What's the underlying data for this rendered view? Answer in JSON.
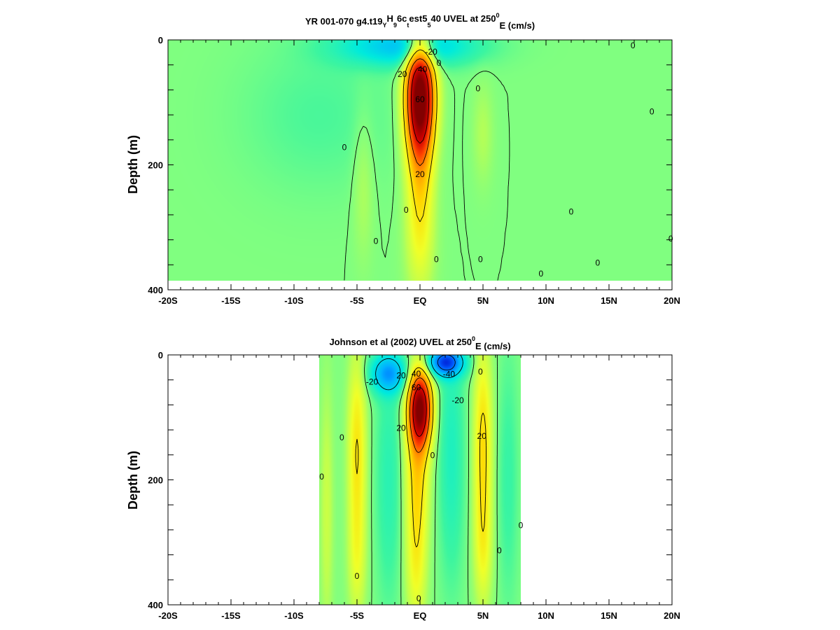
{
  "chart_data": [
    {
      "type": "heatmap",
      "title_parts": [
        "YR 001-070 g4.t19",
        "Y",
        "H",
        "9",
        "6c",
        "t",
        "est5",
        "5",
        "40 UVEL at 250",
        "0",
        "E (cm/s)"
      ],
      "ylabel": "Depth (m)",
      "x_ticklabels": [
        "-20S",
        "-15S",
        "-10S",
        "-5S",
        "EQ",
        "5N",
        "10N",
        "15N",
        "20N"
      ],
      "x_ticks": [
        -20,
        -15,
        -10,
        -5,
        0,
        5,
        10,
        15,
        20
      ],
      "xlim": [
        -20,
        20
      ],
      "y_ticklabels": [
        "0",
        "200",
        "400"
      ],
      "y_ticks": [
        0,
        200,
        400
      ],
      "ylim": [
        0,
        400
      ],
      "y_inverted": true,
      "data_extent": {
        "lat": [
          -20,
          20
        ],
        "depth": [
          0,
          385
        ]
      },
      "features": [
        {
          "kind": "max",
          "lat": 0.0,
          "depth": 90,
          "value": 80,
          "width": 1.1,
          "height": 90
        },
        {
          "kind": "max",
          "lat": 0.0,
          "depth": 200,
          "value": 22,
          "width": 1.0,
          "height": 140
        },
        {
          "kind": "max",
          "lat": 0.0,
          "depth": 330,
          "value": 6,
          "width": 1.2,
          "height": 100
        },
        {
          "kind": "min",
          "lat": -1.0,
          "depth": 10,
          "value": -26,
          "width": 5.0,
          "height": 30
        },
        {
          "kind": "max",
          "lat": -4.5,
          "depth": 230,
          "value": 5,
          "width": 0.8,
          "height": 120
        },
        {
          "kind": "max",
          "lat": 5.0,
          "depth": 150,
          "value": 5,
          "width": 0.8,
          "height": 80
        },
        {
          "kind": "min",
          "lat": -8.0,
          "depth": 120,
          "value": -4,
          "width": 6.0,
          "height": 120
        }
      ],
      "contour_levels": [
        0,
        20,
        40,
        60
      ],
      "contour_labels": [
        {
          "text": "0",
          "lat": 16.9,
          "depth": 9
        },
        {
          "text": "-20",
          "lat": 0.9,
          "depth": 19
        },
        {
          "text": "20",
          "lat": -1.4,
          "depth": 55
        },
        {
          "text": "40",
          "lat": 0.2,
          "depth": 47
        },
        {
          "text": "60",
          "lat": 0.0,
          "depth": 95
        },
        {
          "text": "20",
          "lat": 0.0,
          "depth": 215
        },
        {
          "text": "0",
          "lat": 1.5,
          "depth": 37
        },
        {
          "text": "0",
          "lat": -6.0,
          "depth": 172
        },
        {
          "text": "0",
          "lat": 4.6,
          "depth": 78
        },
        {
          "text": "0",
          "lat": 18.4,
          "depth": 115
        },
        {
          "text": "0",
          "lat": -1.1,
          "depth": 272
        },
        {
          "text": "0",
          "lat": -3.5,
          "depth": 322
        },
        {
          "text": "0",
          "lat": 1.3,
          "depth": 351
        },
        {
          "text": "0",
          "lat": 4.8,
          "depth": 351
        },
        {
          "text": "0",
          "lat": 12.0,
          "depth": 275
        },
        {
          "text": "0",
          "lat": 19.9,
          "depth": 318
        },
        {
          "text": "0",
          "lat": 14.1,
          "depth": 357
        },
        {
          "text": "0",
          "lat": 9.6,
          "depth": 374
        }
      ]
    },
    {
      "type": "heatmap",
      "title_parts": [
        "Johnson et al (2002) UVEL at 250",
        "0",
        "E (cm/s)"
      ],
      "ylabel": "Depth (m)",
      "x_ticklabels": [
        "-20S",
        "-15S",
        "-10S",
        "-5S",
        "EQ",
        "5N",
        "10N",
        "15N",
        "20N"
      ],
      "x_ticks": [
        -20,
        -15,
        -10,
        -5,
        0,
        5,
        10,
        15,
        20
      ],
      "xlim": [
        -20,
        20
      ],
      "y_ticklabels": [
        "0",
        "200",
        "400"
      ],
      "y_ticks": [
        0,
        200,
        400
      ],
      "ylim": [
        0,
        400
      ],
      "y_inverted": true,
      "data_extent": {
        "lat": [
          -8,
          8
        ],
        "depth": [
          0,
          400
        ]
      },
      "features": [
        {
          "kind": "max",
          "lat": 0.0,
          "depth": 85,
          "value": 75,
          "width": 0.9,
          "height": 60
        },
        {
          "kind": "max",
          "lat": -0.2,
          "depth": 180,
          "value": 22,
          "width": 0.9,
          "height": 110
        },
        {
          "kind": "max",
          "lat": -0.3,
          "depth": 330,
          "value": 15,
          "width": 0.8,
          "height": 110
        },
        {
          "kind": "max",
          "lat": -5.0,
          "depth": 150,
          "value": 20,
          "width": 0.7,
          "height": 150
        },
        {
          "kind": "max",
          "lat": -5.0,
          "depth": 330,
          "value": 10,
          "width": 0.7,
          "height": 100
        },
        {
          "kind": "max",
          "lat": 5.0,
          "depth": 140,
          "value": 22,
          "width": 0.7,
          "height": 150
        },
        {
          "kind": "max",
          "lat": 5.0,
          "depth": 310,
          "value": 12,
          "width": 0.7,
          "height": 100
        },
        {
          "kind": "max",
          "lat": -7.4,
          "depth": 250,
          "value": 8,
          "width": 0.5,
          "height": 200
        },
        {
          "kind": "min",
          "lat": -2.5,
          "depth": 30,
          "value": -32,
          "width": 1.4,
          "height": 30
        },
        {
          "kind": "min",
          "lat": 2.0,
          "depth": 12,
          "value": -48,
          "width": 1.4,
          "height": 22
        },
        {
          "kind": "min",
          "lat": 2.5,
          "depth": 160,
          "value": -10,
          "width": 1.0,
          "height": 200
        },
        {
          "kind": "min",
          "lat": -2.5,
          "depth": 200,
          "value": -8,
          "width": 1.0,
          "height": 200
        },
        {
          "kind": "min",
          "lat": 7.0,
          "depth": 200,
          "value": -6,
          "width": 0.8,
          "height": 200
        }
      ],
      "contour_levels": [
        -40,
        -20,
        0,
        20,
        40,
        60
      ],
      "contour_labels": [
        {
          "text": "-20",
          "lat": -3.8,
          "depth": 43
        },
        {
          "text": "-40",
          "lat": 2.3,
          "depth": 31
        },
        {
          "text": "-20",
          "lat": 3.0,
          "depth": 73
        },
        {
          "text": "20",
          "lat": -1.5,
          "depth": 33
        },
        {
          "text": "40",
          "lat": -0.3,
          "depth": 30
        },
        {
          "text": "60",
          "lat": -0.3,
          "depth": 52
        },
        {
          "text": "20",
          "lat": -1.5,
          "depth": 117
        },
        {
          "text": "20",
          "lat": 4.9,
          "depth": 130
        },
        {
          "text": "0",
          "lat": -6.2,
          "depth": 132
        },
        {
          "text": "0",
          "lat": -7.8,
          "depth": 195
        },
        {
          "text": "0",
          "lat": 1.0,
          "depth": 161
        },
        {
          "text": "0",
          "lat": 4.8,
          "depth": 27
        },
        {
          "text": "0",
          "lat": 8.0,
          "depth": 273
        },
        {
          "text": "0",
          "lat": 6.3,
          "depth": 313
        },
        {
          "text": "0",
          "lat": -5.0,
          "depth": 354
        },
        {
          "text": "0",
          "lat": -0.1,
          "depth": 390
        }
      ]
    }
  ]
}
